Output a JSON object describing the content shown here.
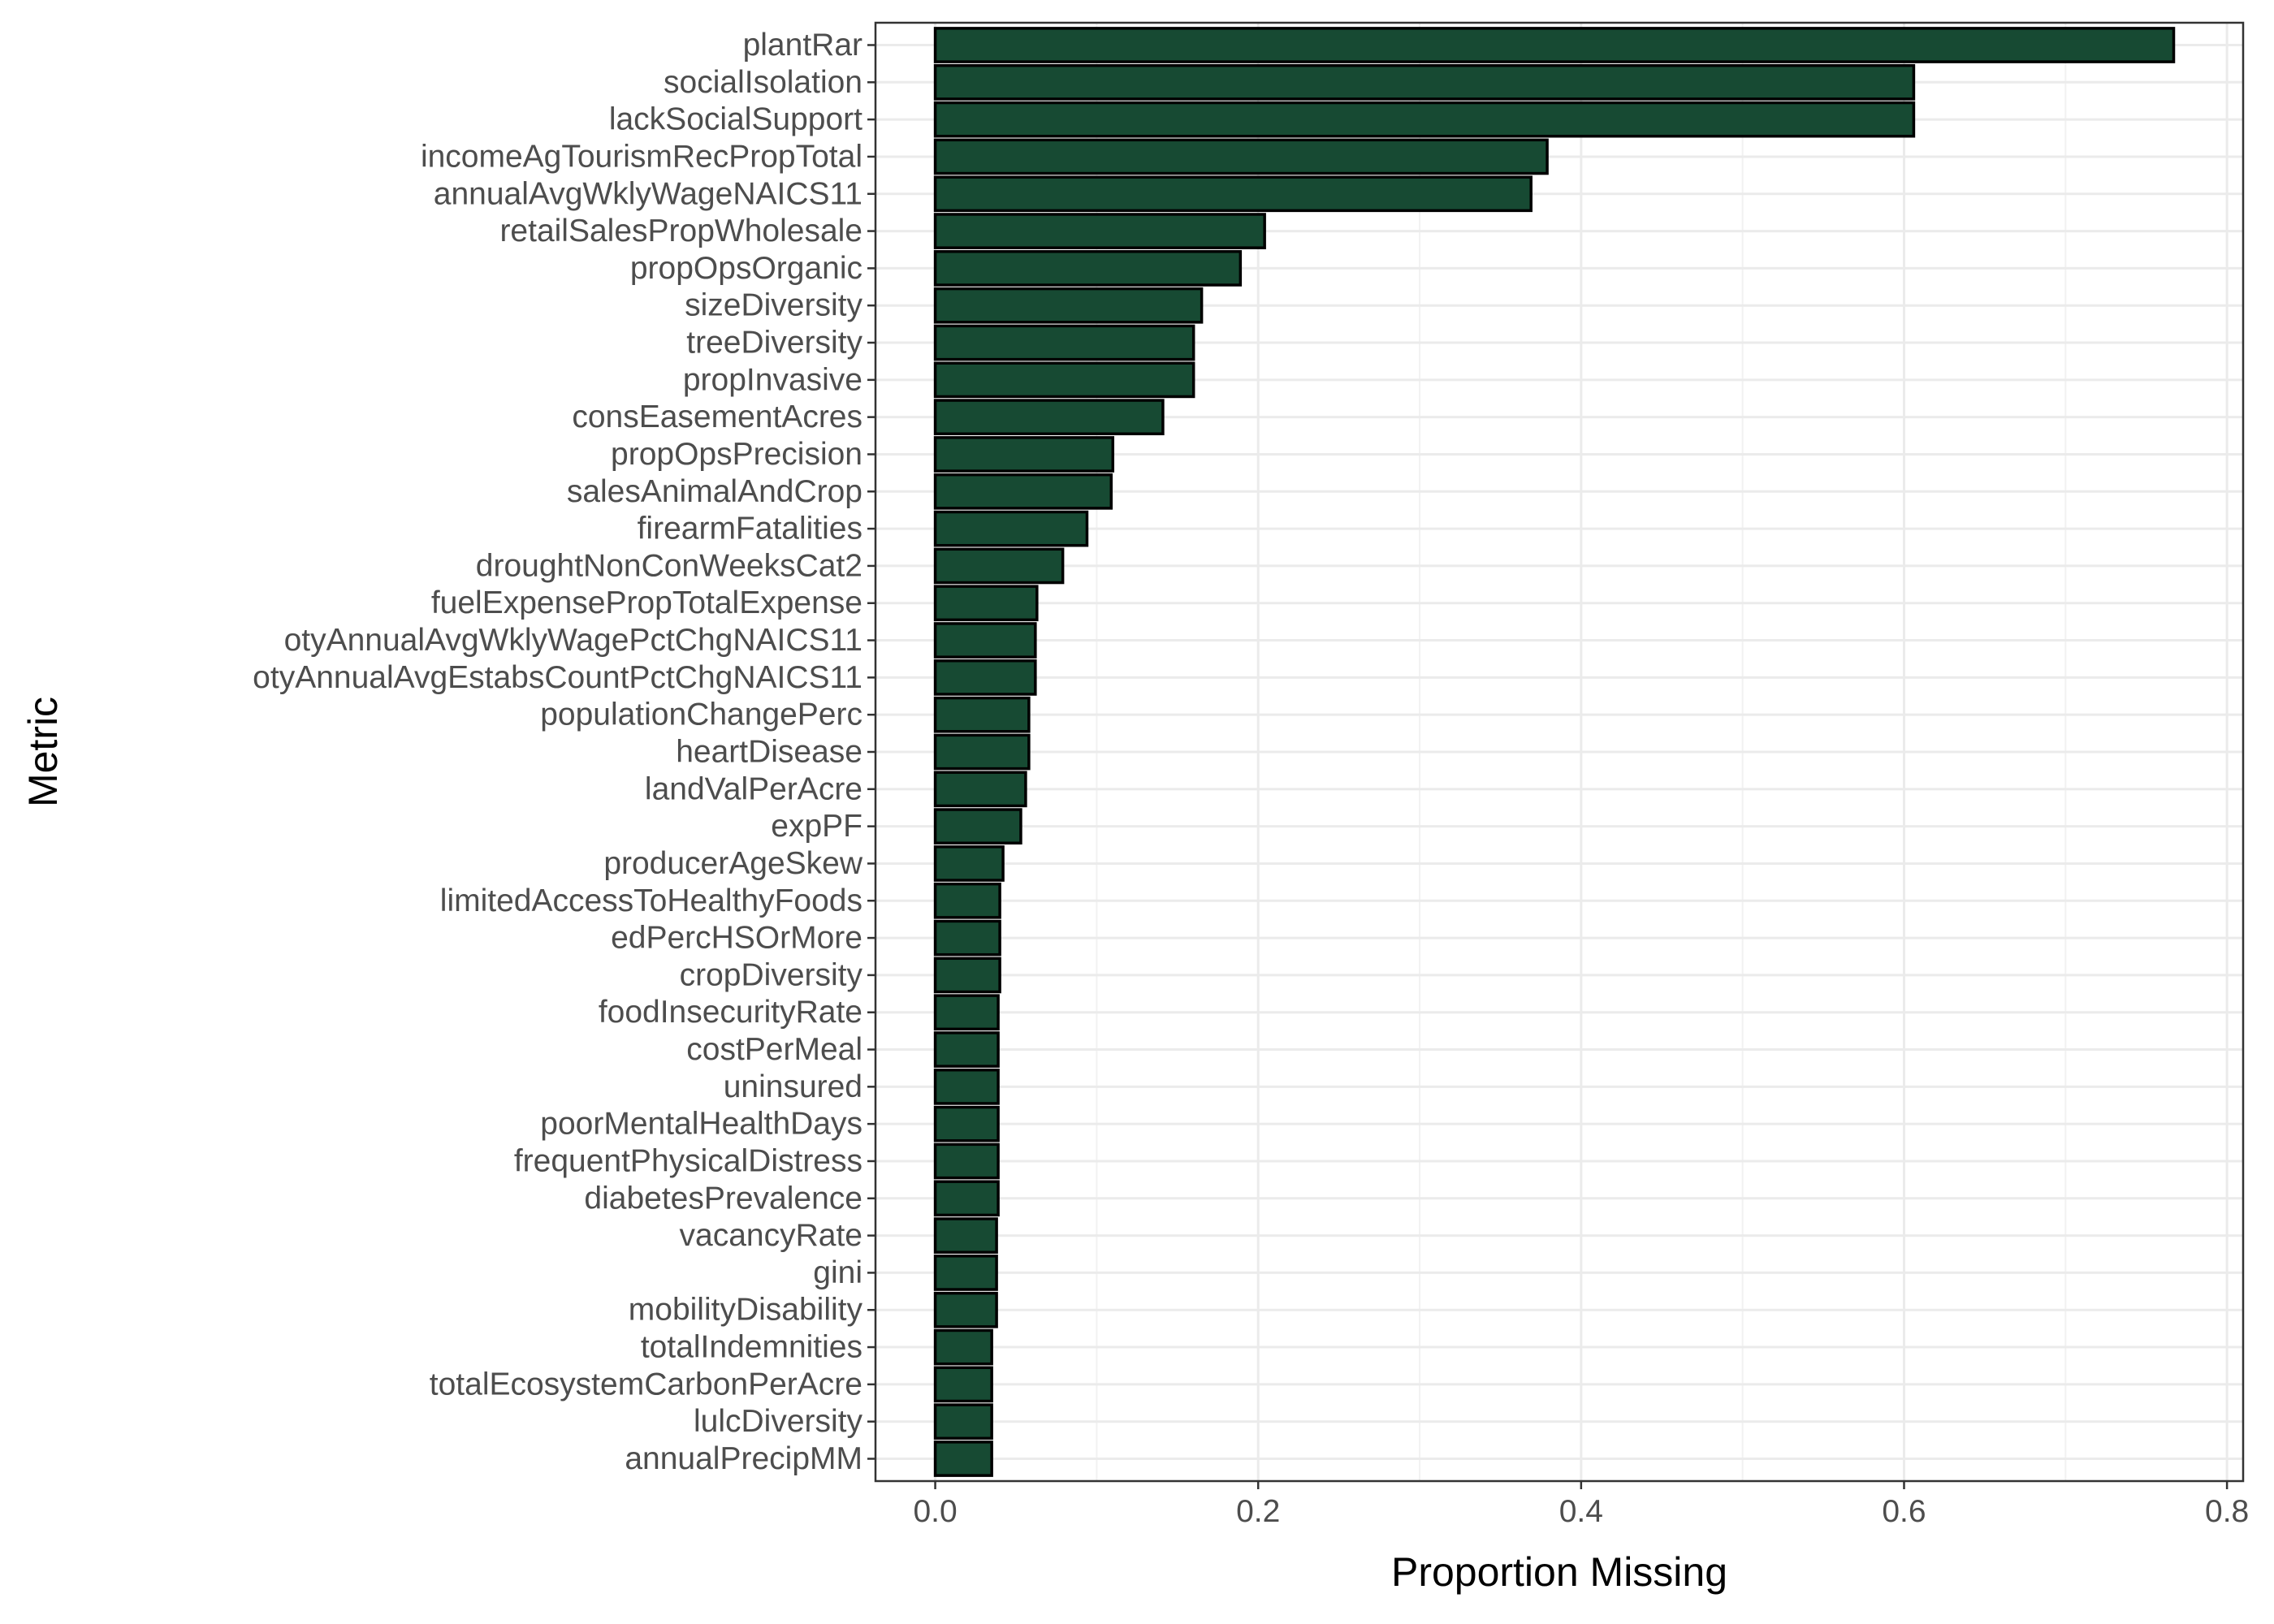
{
  "chart_data": {
    "type": "bar",
    "orientation": "horizontal",
    "xlabel": "Proportion Missing",
    "ylabel": "Metric",
    "xlim": [
      -0.037,
      0.81
    ],
    "x_ticks": [
      "0.0",
      "0.2",
      "0.4",
      "0.6",
      "0.8"
    ],
    "x_tick_values": [
      0.0,
      0.2,
      0.4,
      0.6,
      0.8
    ],
    "grid": true,
    "bar_color": "#174a33",
    "bar_outline": "#000000",
    "categories": [
      "plantRar",
      "socialIsolation",
      "lackSocialSupport",
      "incomeAgTourismRecPropTotal",
      "annualAvgWklyWageNAICS11",
      "retailSalesPropWholesale",
      "propOpsOrganic",
      "sizeDiversity",
      "treeDiversity",
      "propInvasive",
      "consEasementAcres",
      "propOpsPrecision",
      "salesAnimalAndCrop",
      "firearmFatalities",
      "droughtNonConWeeksCat2",
      "fuelExpensePropTotalExpense",
      "otyAnnualAvgWklyWagePctChgNAICS11",
      "otyAnnualAvgEstabsCountPctChgNAICS11",
      "populationChangePerc",
      "heartDisease",
      "landValPerAcre",
      "expPF",
      "producerAgeSkew",
      "limitedAccessToHealthyFoods",
      "edPercHSOrMore",
      "cropDiversity",
      "foodInsecurityRate",
      "costPerMeal",
      "uninsured",
      "poorMentalHealthDays",
      "frequentPhysicalDistress",
      "diabetesPrevalence",
      "vacancyRate",
      "gini",
      "mobilityDisability",
      "totalIndemnities",
      "totalEcosystemCarbonPerAcre",
      "lulcDiversity",
      "annualPrecipMM"
    ],
    "values": [
      0.767,
      0.606,
      0.606,
      0.379,
      0.369,
      0.204,
      0.189,
      0.165,
      0.16,
      0.16,
      0.141,
      0.11,
      0.109,
      0.094,
      0.079,
      0.063,
      0.062,
      0.062,
      0.058,
      0.058,
      0.056,
      0.053,
      0.042,
      0.04,
      0.04,
      0.04,
      0.039,
      0.039,
      0.039,
      0.039,
      0.039,
      0.039,
      0.038,
      0.038,
      0.038,
      0.035,
      0.035,
      0.035,
      0.035
    ]
  }
}
